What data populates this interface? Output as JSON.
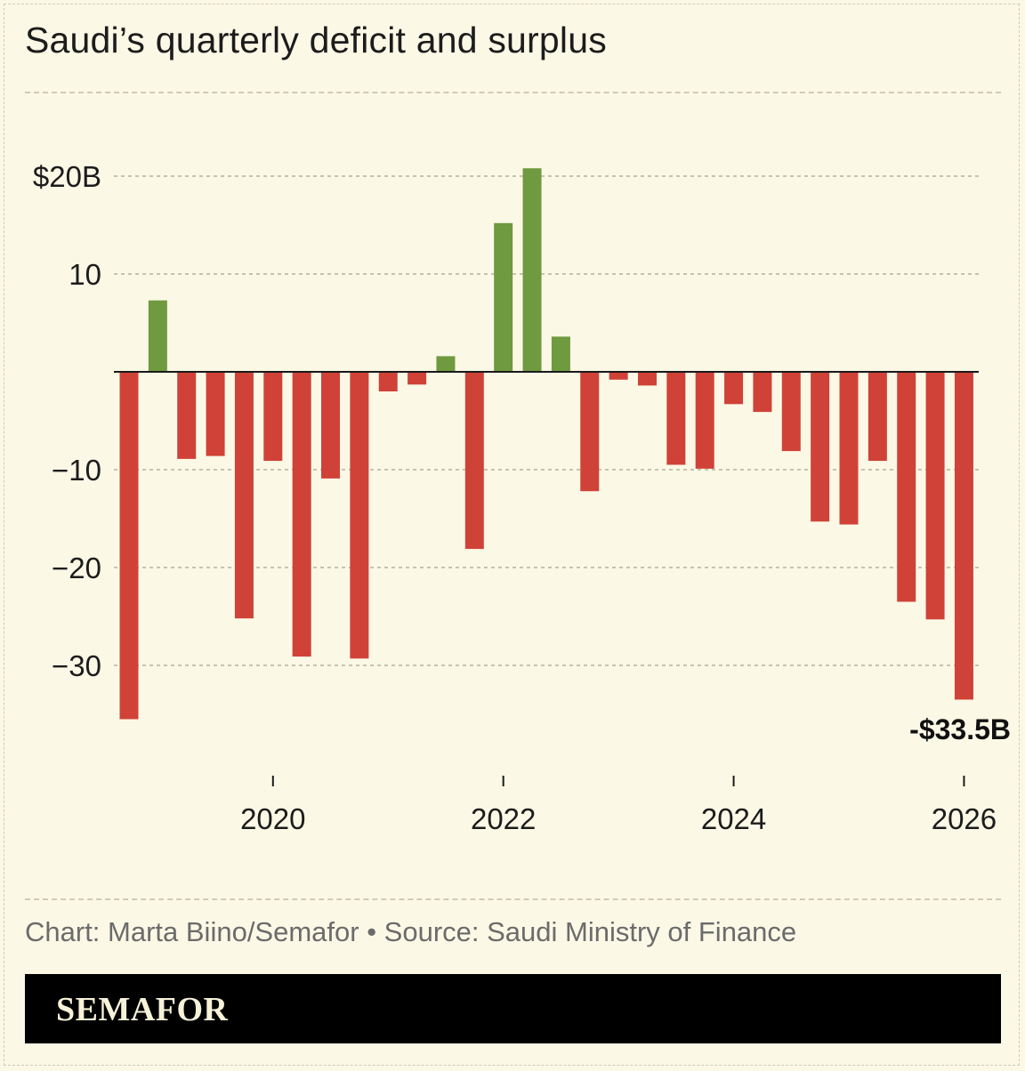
{
  "title": "Saudi’s quarterly deficit and surplus",
  "credit": "Chart: Marta Biino/Semafor • Source: Saudi Ministry of Finance",
  "brand": "SEMAFOR",
  "colors": {
    "surplus": "#6f9a3f",
    "deficit": "#d04237",
    "background": "#fbf8e6",
    "grid": "#b5b29f"
  },
  "chart_data": {
    "type": "bar",
    "x_start": "2019 Q1",
    "values": [
      -35.5,
      7.3,
      -8.9,
      -8.6,
      -25.2,
      -9.1,
      -29.1,
      -10.9,
      -29.3,
      -2.0,
      -1.3,
      1.6,
      -18.1,
      15.2,
      20.8,
      3.6,
      -12.2,
      -0.8,
      -1.4,
      -9.5,
      -9.9,
      -3.3,
      -4.1,
      -8.1,
      -15.3,
      -15.6,
      -9.1,
      -23.5,
      -25.3,
      -33.5
    ],
    "y_ticks": [
      20,
      10,
      -10,
      -20,
      -30
    ],
    "y_tick_labels": [
      "$20B",
      "10",
      "−10",
      "−20",
      "−30"
    ],
    "x_ticks": [
      "2020",
      "2022",
      "2024",
      "2026"
    ],
    "ylim": [
      -36,
      21
    ],
    "grid": true,
    "annotation": "-$33.5B"
  }
}
